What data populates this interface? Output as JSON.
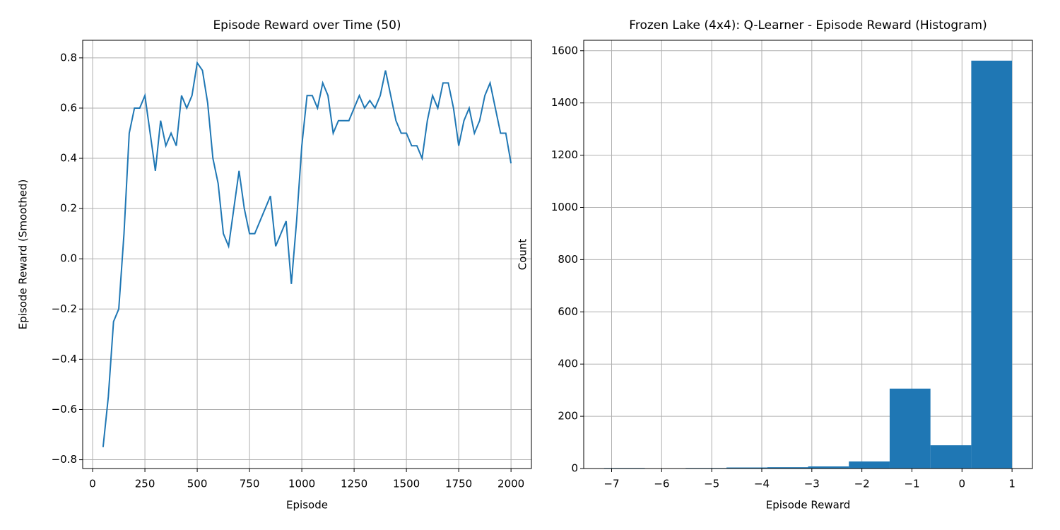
{
  "chart_data": [
    {
      "type": "line",
      "title": "Episode Reward over Time (50)",
      "xlabel": "Episode",
      "ylabel": "Episode Reward (Smoothed)",
      "x": [
        50,
        75,
        100,
        125,
        150,
        175,
        200,
        225,
        250,
        275,
        300,
        325,
        350,
        375,
        400,
        425,
        450,
        475,
        500,
        525,
        550,
        575,
        600,
        625,
        650,
        675,
        700,
        725,
        750,
        775,
        800,
        825,
        850,
        875,
        900,
        925,
        950,
        975,
        1000,
        1025,
        1050,
        1075,
        1100,
        1125,
        1150,
        1175,
        1200,
        1225,
        1250,
        1275,
        1300,
        1325,
        1350,
        1375,
        1400,
        1425,
        1450,
        1475,
        1500,
        1525,
        1550,
        1575,
        1600,
        1625,
        1650,
        1675,
        1700,
        1725,
        1750,
        1775,
        1800,
        1825,
        1850,
        1875,
        1900,
        1925,
        1950,
        1975,
        2000
      ],
      "series": [
        {
          "color": "#1f77b4",
          "values": [
            -0.75,
            -0.55,
            -0.25,
            -0.2,
            0.1,
            0.5,
            0.6,
            0.6,
            0.65,
            0.5,
            0.35,
            0.55,
            0.45,
            0.5,
            0.45,
            0.65,
            0.6,
            0.65,
            0.78,
            0.75,
            0.62,
            0.4,
            0.3,
            0.1,
            0.05,
            0.2,
            0.35,
            0.2,
            0.1,
            0.1,
            0.15,
            0.2,
            0.25,
            0.05,
            0.1,
            0.15,
            -0.1,
            0.15,
            0.45,
            0.65,
            0.65,
            0.6,
            0.7,
            0.65,
            0.5,
            0.55,
            0.55,
            0.55,
            0.6,
            0.65,
            0.6,
            0.63,
            0.6,
            0.65,
            0.75,
            0.65,
            0.55,
            0.5,
            0.5,
            0.45,
            0.45,
            0.4,
            0.55,
            0.65,
            0.6,
            0.7,
            0.7,
            0.6,
            0.45,
            0.55,
            0.6,
            0.5,
            0.55,
            0.65,
            0.7,
            0.6,
            0.5,
            0.5,
            0.38
          ]
        }
      ],
      "xlim": [
        -47.5,
        2097.5
      ],
      "xticks": [
        0,
        250,
        500,
        750,
        1000,
        1250,
        1500,
        1750,
        2000
      ],
      "ylim": [
        -0.835,
        0.87
      ],
      "yticks": [
        {
          "value": -0.8,
          "label": "−0.8"
        },
        {
          "value": -0.6,
          "label": "−0.6"
        },
        {
          "value": -0.4,
          "label": "−0.4"
        },
        {
          "value": -0.2,
          "label": "−0.2"
        },
        {
          "value": 0,
          "label": "0.0"
        },
        0.2,
        0.4,
        0.6,
        0.8
      ],
      "grid": true
    },
    {
      "type": "histogram",
      "title": "Frozen Lake (4x4): Q-Learner - Episode Reward (Histogram)",
      "xlabel": "Episode Reward",
      "ylabel": "Count",
      "bins": [
        -7.15,
        -6.335,
        -5.52,
        -4.705,
        -3.89,
        -3.075,
        -2.26,
        -1.445,
        -0.63,
        0.185,
        1
      ],
      "values": [
        2,
        1,
        2,
        4,
        5,
        8,
        27,
        306,
        89,
        1562
      ],
      "color": "#1f77b4",
      "xlim": [
        -7.5575,
        1.4075
      ],
      "xticks": [
        {
          "value": -7,
          "label": "−7"
        },
        {
          "value": -6,
          "label": "−6"
        },
        {
          "value": -5,
          "label": "−5"
        },
        {
          "value": -4,
          "label": "−4"
        },
        {
          "value": -3,
          "label": "−3"
        },
        {
          "value": -2,
          "label": "−2"
        },
        {
          "value": -1,
          "label": "−1"
        },
        0,
        1
      ],
      "ylim": [
        0,
        1640
      ],
      "yticks": [
        0,
        200,
        400,
        600,
        800,
        1000,
        1200,
        1400,
        1600
      ],
      "grid": true
    }
  ]
}
